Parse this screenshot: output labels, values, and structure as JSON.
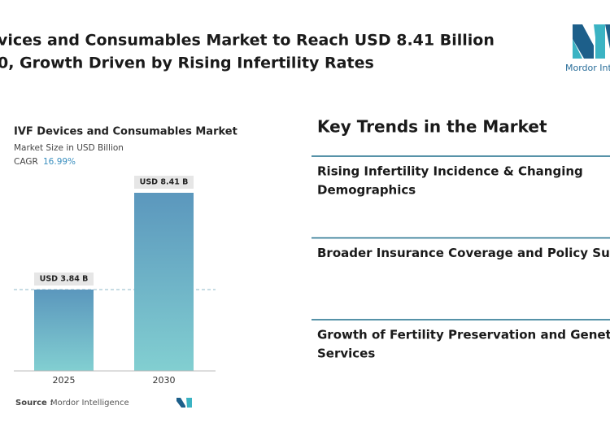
{
  "header": {
    "title_lines": [
      "vices and Consumables Market to Reach USD 8.41 Billion",
      "0, Growth Driven by Rising Infertility Rates"
    ],
    "logo_text": "Mordor Inte"
  },
  "chart_data": {
    "type": "bar",
    "title": "IVF Devices and Consumables Market",
    "subtitle": "Market Size in USD Billion",
    "cagr_label": "CAGR",
    "cagr": "16.99%",
    "categories": [
      "2025",
      "2030"
    ],
    "values": [
      3.84,
      8.41
    ],
    "value_labels": [
      "USD 3.84 B",
      "USD 8.41 B"
    ],
    "source_label": "Source :",
    "source": "Mordor Intelligence"
  },
  "trends": {
    "heading": "Key Trends in the Market",
    "items": [
      [
        "Rising Infertility Incidence & Changing",
        "Demographics"
      ],
      [
        "Broader Insurance Coverage and Policy Su"
      ],
      [
        "Growth of Fertility Preservation and Genet",
        "Services"
      ]
    ]
  }
}
